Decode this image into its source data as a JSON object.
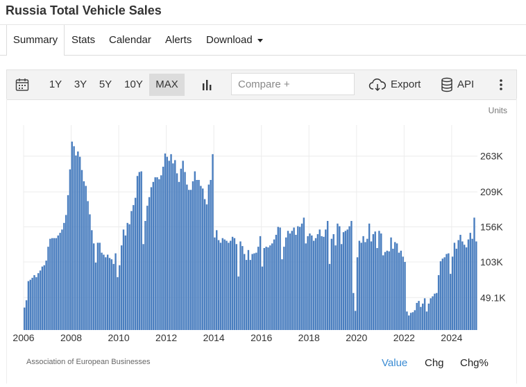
{
  "page": {
    "title": "Russia Total Vehicle Sales"
  },
  "tabs": [
    "Summary",
    "Stats",
    "Calendar",
    "Alerts",
    "Download"
  ],
  "toolbar": {
    "ranges": [
      "1Y",
      "3Y",
      "5Y",
      "10Y",
      "MAX"
    ],
    "selected_range": "MAX",
    "compare_placeholder": "Compare +",
    "export_label": "Export",
    "api_label": "API",
    "icons": [
      "calendar-icon",
      "bar-chart-icon",
      "cloud-download-icon",
      "database-icon",
      "more-vertical-icon"
    ]
  },
  "footer": {
    "source": "Association of European Businesses",
    "modes": [
      "Value",
      "Chg",
      "Chg%"
    ],
    "active_mode": "Value"
  },
  "chart_data": {
    "type": "bar",
    "unit_label": "Units",
    "color": "#4a7ebf",
    "ylim": [
      0,
      310000
    ],
    "yticks": [
      49100,
      103000,
      156000,
      209000,
      263000
    ],
    "ytick_labels": [
      "49.1K",
      "103K",
      "156K",
      "209K",
      "263K"
    ],
    "xticks": [
      "2006",
      "2008",
      "2010",
      "2012",
      "2014",
      "2016",
      "2018",
      "2020",
      "2022",
      "2024"
    ],
    "grid": true,
    "start": "2006-01",
    "values": [
      34000,
      45000,
      74000,
      76000,
      79000,
      83000,
      80000,
      86000,
      90000,
      96000,
      98000,
      105000,
      126000,
      138000,
      139000,
      139000,
      139000,
      143000,
      147000,
      152000,
      162000,
      174000,
      204000,
      243000,
      285000,
      278000,
      264000,
      270000,
      262000,
      242000,
      225000,
      218000,
      195000,
      175000,
      151000,
      131000,
      102000,
      132000,
      132000,
      117000,
      114000,
      110000,
      114000,
      109000,
      107000,
      100000,
      116000,
      80000,
      98000,
      128000,
      152000,
      143000,
      162000,
      160000,
      180000,
      189000,
      200000,
      233000,
      239000,
      240000,
      130000,
      165000,
      188000,
      201000,
      216000,
      224000,
      231000,
      231000,
      228000,
      234000,
      247000,
      267000,
      262000,
      256000,
      266000,
      252000,
      257000,
      237000,
      224000,
      244000,
      256000,
      239000,
      220000,
      212000,
      212000,
      225000,
      240000,
      227000,
      227000,
      218000,
      214000,
      198000,
      190000,
      220000,
      227000,
      266000,
      140000,
      151000,
      136000,
      132000,
      139000,
      137000,
      135000,
      132000,
      135000,
      141000,
      139000,
      130000,
      81000,
      134000,
      127000,
      115000,
      106000,
      121000,
      106000,
      115000,
      116000,
      117000,
      126000,
      142000,
      96000,
      124000,
      126000,
      125000,
      128000,
      131000,
      137000,
      144000,
      156000,
      155000,
      107000,
      126000,
      140000,
      150000,
      146000,
      150000,
      155000,
      144000,
      157000,
      156000,
      161000,
      170000,
      131000,
      142000,
      146000,
      143000,
      135000,
      139000,
      145000,
      152000,
      142000,
      141000,
      152000,
      165000,
      100000,
      138000,
      145000,
      128000,
      161000,
      157000,
      130000,
      148000,
      150000,
      152000,
      157000,
      165000,
      56000,
      29000,
      110000,
      135000,
      132000,
      142000,
      133000,
      138000,
      161000,
      134000,
      145000,
      149000,
      124000,
      150000,
      146000,
      113000,
      118000,
      120000,
      119000,
      140000,
      123000,
      133000,
      131000,
      117000,
      120000,
      111000,
      103000,
      28000,
      22000,
      26000,
      27000,
      30000,
      41000,
      44000,
      35000,
      40000,
      48000,
      28000,
      40000,
      48000,
      51000,
      55000,
      56000,
      83000,
      104000,
      108000,
      110000,
      115000,
      116000,
      85000,
      111000,
      132000,
      123000,
      136000,
      144000,
      134000,
      129000,
      125000,
      137000,
      147000,
      138000,
      170000,
      134000
    ]
  }
}
